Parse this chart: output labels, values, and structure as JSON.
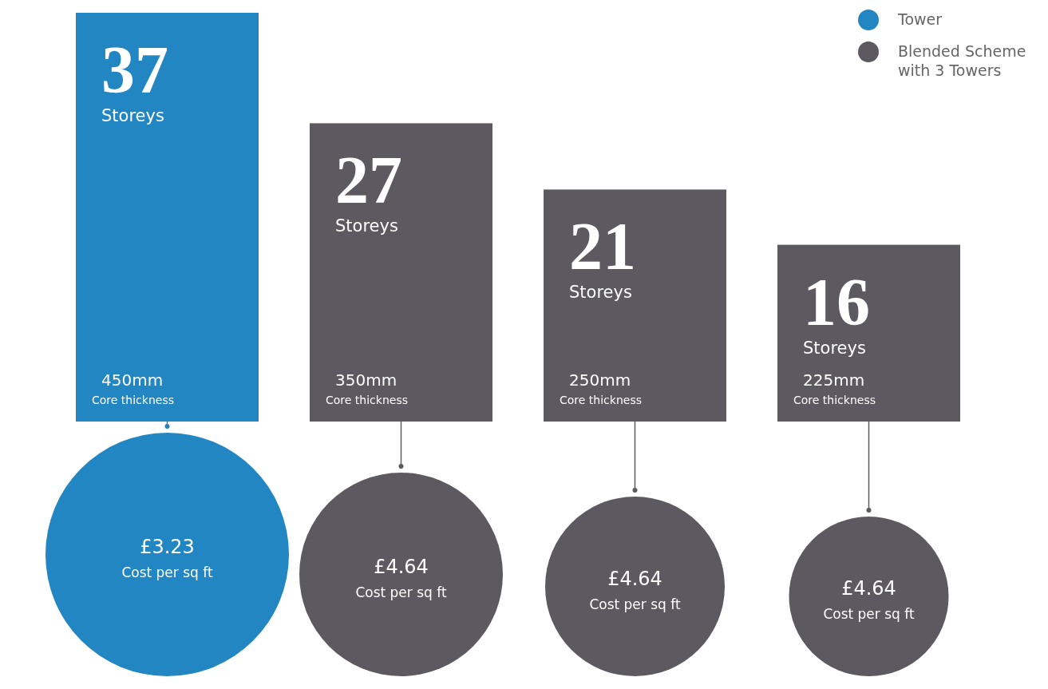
{
  "chart_data": {
    "type": "bar",
    "stacked": true,
    "categories": [
      null,
      null,
      null,
      null
    ],
    "series": [
      {
        "name": "Tower",
        "color": "#2286c3",
        "values": [
          37,
          null,
          null,
          null
        ]
      },
      {
        "name": "Blended Scheme with 3 Towers",
        "color": "#5c5960",
        "values": [
          null,
          27,
          21,
          16
        ]
      }
    ],
    "data_labels": true,
    "legend": "top right",
    "tick_labels": false,
    "grid": false,
    "annotations": [
      "Storeys",
      "450mm",
      "Core thickness",
      "£3.23",
      "Cost per sq ft",
      "Storeys",
      "350mm",
      "Core thickness",
      "£4.64",
      "Cost per sq ft",
      "Storeys",
      "250mm",
      "Core thickness",
      "£4.64",
      "Cost per sq ft",
      "Storeys",
      "225mm",
      "Core thickness",
      "£4.64",
      "Cost per sq ft"
    ]
  }
}
